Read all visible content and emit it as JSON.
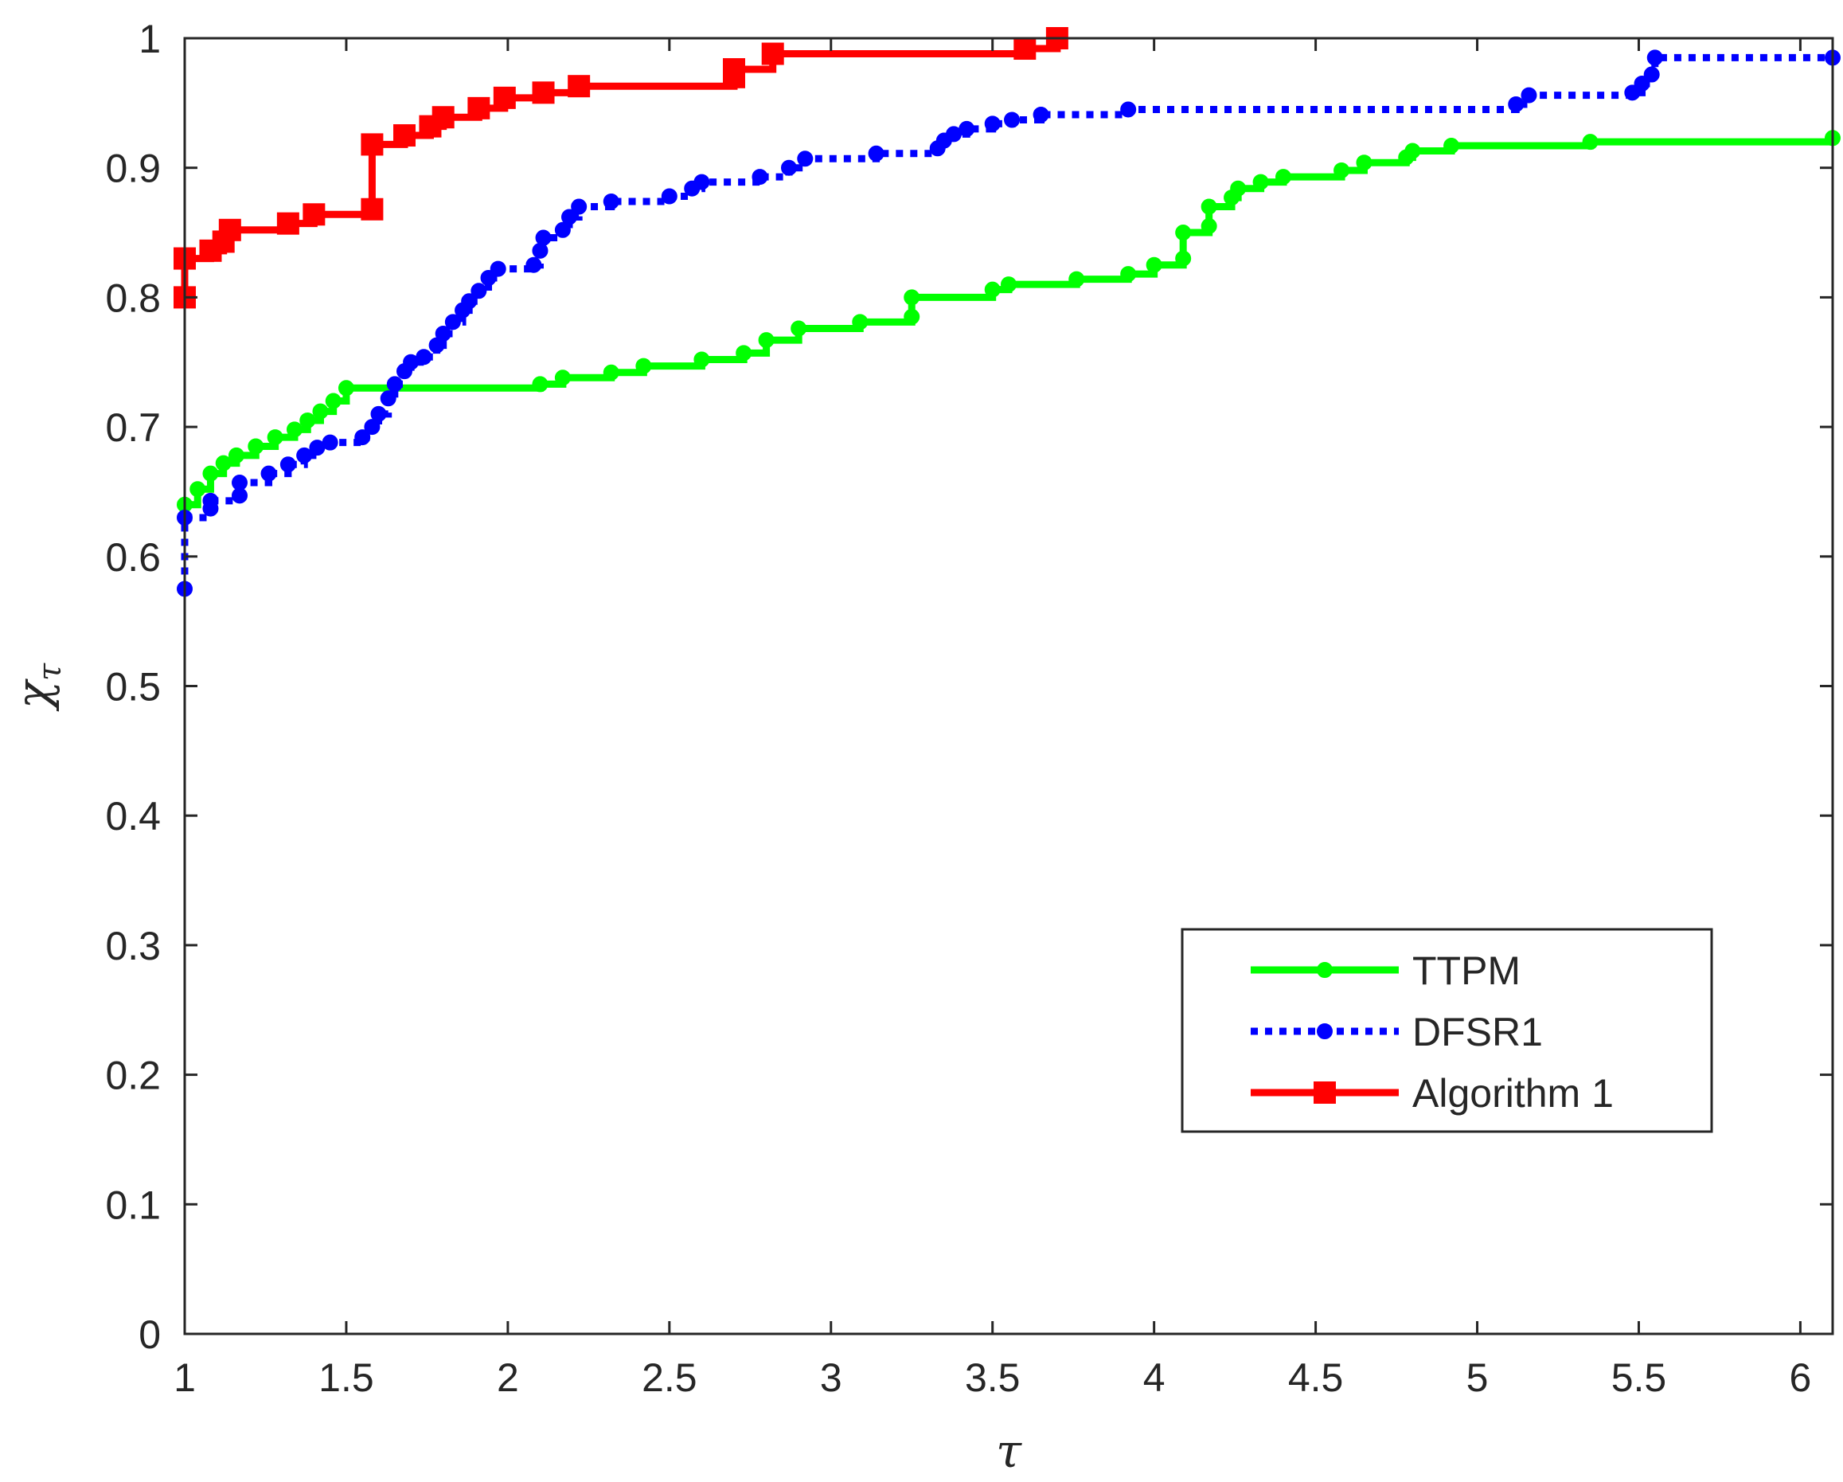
{
  "chart_data": {
    "type": "line",
    "title": "",
    "xlabel": "τ",
    "ylabel": "χ",
    "ylabel_subscript": "τ",
    "xlim": [
      1,
      6.1
    ],
    "ylim": [
      0,
      1
    ],
    "xticks": [
      "1",
      "1.5",
      "2",
      "2.5",
      "3",
      "3.5",
      "4",
      "4.5",
      "5",
      "5.5",
      "6"
    ],
    "yticks": [
      "0",
      "0.1",
      "0.2",
      "0.3",
      "0.4",
      "0.5",
      "0.6",
      "0.7",
      "0.8",
      "0.9",
      "1"
    ],
    "xtick_values": [
      1,
      1.5,
      2,
      2.5,
      3,
      3.5,
      4,
      4.5,
      5,
      5.5,
      6
    ],
    "ytick_values": [
      0,
      0.1,
      0.2,
      0.3,
      0.4,
      0.5,
      0.6,
      0.7,
      0.8,
      0.9,
      1
    ],
    "grid": false,
    "legend_position": "bottom-right",
    "series": [
      {
        "name": "TTPM",
        "color": "#00ff00",
        "line_style": "solid",
        "marker": "circle",
        "step": true,
        "points": [
          [
            1.0,
            0.64
          ],
          [
            1.04,
            0.652
          ],
          [
            1.08,
            0.664
          ],
          [
            1.12,
            0.672
          ],
          [
            1.16,
            0.678
          ],
          [
            1.22,
            0.685
          ],
          [
            1.28,
            0.692
          ],
          [
            1.34,
            0.698
          ],
          [
            1.38,
            0.705
          ],
          [
            1.42,
            0.712
          ],
          [
            1.46,
            0.72
          ],
          [
            1.5,
            0.73
          ],
          [
            2.1,
            0.733
          ],
          [
            2.17,
            0.738
          ],
          [
            2.32,
            0.742
          ],
          [
            2.42,
            0.747
          ],
          [
            2.6,
            0.752
          ],
          [
            2.73,
            0.757
          ],
          [
            2.8,
            0.767
          ],
          [
            2.9,
            0.776
          ],
          [
            3.09,
            0.781
          ],
          [
            3.25,
            0.785
          ],
          [
            3.25,
            0.8
          ],
          [
            3.5,
            0.806
          ],
          [
            3.55,
            0.81
          ],
          [
            3.76,
            0.814
          ],
          [
            3.92,
            0.818
          ],
          [
            4.0,
            0.825
          ],
          [
            4.09,
            0.83
          ],
          [
            4.09,
            0.85
          ],
          [
            4.17,
            0.855
          ],
          [
            4.17,
            0.87
          ],
          [
            4.24,
            0.877
          ],
          [
            4.26,
            0.884
          ],
          [
            4.33,
            0.889
          ],
          [
            4.4,
            0.893
          ],
          [
            4.58,
            0.898
          ],
          [
            4.65,
            0.904
          ],
          [
            4.78,
            0.908
          ],
          [
            4.8,
            0.913
          ],
          [
            4.92,
            0.917
          ],
          [
            5.35,
            0.92
          ],
          [
            6.1,
            0.923
          ]
        ]
      },
      {
        "name": "DFSR1",
        "color": "#0000ff",
        "line_style": "dotted",
        "marker": "circle",
        "step": true,
        "points": [
          [
            1.0,
            0.575
          ],
          [
            1.0,
            0.63
          ],
          [
            1.08,
            0.637
          ],
          [
            1.08,
            0.643
          ],
          [
            1.17,
            0.647
          ],
          [
            1.17,
            0.657
          ],
          [
            1.26,
            0.664
          ],
          [
            1.32,
            0.671
          ],
          [
            1.37,
            0.678
          ],
          [
            1.41,
            0.684
          ],
          [
            1.45,
            0.688
          ],
          [
            1.55,
            0.692
          ],
          [
            1.58,
            0.7
          ],
          [
            1.6,
            0.71
          ],
          [
            1.63,
            0.722
          ],
          [
            1.65,
            0.733
          ],
          [
            1.68,
            0.743
          ],
          [
            1.7,
            0.75
          ],
          [
            1.74,
            0.754
          ],
          [
            1.78,
            0.763
          ],
          [
            1.8,
            0.772
          ],
          [
            1.83,
            0.781
          ],
          [
            1.86,
            0.79
          ],
          [
            1.88,
            0.797
          ],
          [
            1.91,
            0.805
          ],
          [
            1.94,
            0.815
          ],
          [
            1.97,
            0.822
          ],
          [
            2.08,
            0.825
          ],
          [
            2.1,
            0.836
          ],
          [
            2.11,
            0.846
          ],
          [
            2.17,
            0.852
          ],
          [
            2.19,
            0.862
          ],
          [
            2.22,
            0.87
          ],
          [
            2.32,
            0.874
          ],
          [
            2.5,
            0.878
          ],
          [
            2.57,
            0.884
          ],
          [
            2.6,
            0.889
          ],
          [
            2.78,
            0.893
          ],
          [
            2.87,
            0.9
          ],
          [
            2.92,
            0.907
          ],
          [
            3.14,
            0.911
          ],
          [
            3.33,
            0.915
          ],
          [
            3.35,
            0.921
          ],
          [
            3.38,
            0.926
          ],
          [
            3.42,
            0.93
          ],
          [
            3.5,
            0.934
          ],
          [
            3.56,
            0.937
          ],
          [
            3.65,
            0.941
          ],
          [
            3.92,
            0.945
          ],
          [
            5.12,
            0.949
          ],
          [
            5.16,
            0.956
          ],
          [
            5.48,
            0.958
          ],
          [
            5.51,
            0.965
          ],
          [
            5.54,
            0.972
          ],
          [
            5.55,
            0.985
          ],
          [
            6.1,
            0.985
          ]
        ]
      },
      {
        "name": "Algorithm 1",
        "color": "#ff0000",
        "line_style": "solid",
        "marker": "square",
        "step": true,
        "points": [
          [
            1.0,
            0.8
          ],
          [
            1.0,
            0.83
          ],
          [
            1.08,
            0.836
          ],
          [
            1.12,
            0.843
          ],
          [
            1.14,
            0.852
          ],
          [
            1.32,
            0.857
          ],
          [
            1.4,
            0.864
          ],
          [
            1.58,
            0.868
          ],
          [
            1.58,
            0.918
          ],
          [
            1.68,
            0.925
          ],
          [
            1.76,
            0.932
          ],
          [
            1.8,
            0.939
          ],
          [
            1.91,
            0.946
          ],
          [
            1.99,
            0.954
          ],
          [
            2.11,
            0.958
          ],
          [
            2.22,
            0.963
          ],
          [
            2.7,
            0.97
          ],
          [
            2.7,
            0.976
          ],
          [
            2.82,
            0.988
          ],
          [
            3.6,
            0.992
          ],
          [
            3.7,
            1.0
          ]
        ]
      }
    ]
  }
}
